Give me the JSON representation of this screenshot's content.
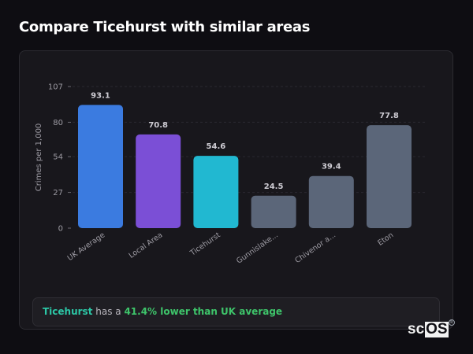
{
  "page": {
    "title": "Compare Ticehurst with similar areas"
  },
  "chart_data": {
    "type": "bar",
    "title": "Compare Ticehurst with similar areas",
    "xlabel": "",
    "ylabel": "Crimes per 1,000",
    "ylim": [
      0,
      107
    ],
    "yticks": [
      0,
      27,
      54,
      80,
      107
    ],
    "grid": "horizontal-dashed",
    "legend": "none",
    "categories": [
      "UK Average",
      "Local Area",
      "Ticehurst",
      "Gunnislake...",
      "Chivenor a...",
      "Eton"
    ],
    "values": [
      93.1,
      70.8,
      54.6,
      24.5,
      39.4,
      77.8
    ],
    "value_labels": [
      "93.1",
      "70.8",
      "54.6",
      "24.5",
      "39.4",
      "77.8"
    ],
    "colors": [
      "#3b7be0",
      "#7b4fd6",
      "#21b8d1",
      "#5b6679",
      "#5b6679",
      "#5b6679"
    ]
  },
  "summary": {
    "place": "Ticehurst",
    "connector": " has a ",
    "stat": "41.4% lower than UK average"
  },
  "logo": {
    "sc": "sc",
    "os": "OS",
    "reg": "®"
  },
  "colors": {
    "background": "#0e0d12",
    "card": "#18171c",
    "place_accent": "#2cc7a6",
    "stat_accent": "#3ec46a"
  }
}
